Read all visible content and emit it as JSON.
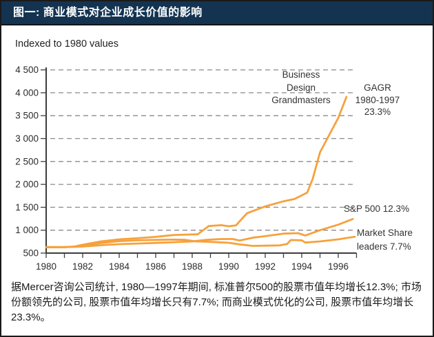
{
  "header": {
    "title": "图一: 商业模式对企业成长价值的影响",
    "bg_color": "#133351",
    "text_color": "#ffffff"
  },
  "chart": {
    "subtitle": "Indexed to 1980 values",
    "annotations": {
      "business_design": {
        "lines": [
          "Business",
          "Design",
          "Grandmasters"
        ]
      },
      "gagr": {
        "lines": [
          "GAGR",
          "1980-1997",
          "23.3%"
        ]
      },
      "sp500": {
        "text": "S&P 500 12.3%"
      },
      "market_share": {
        "lines": [
          "Market Share",
          "leaders 7.7%"
        ]
      }
    }
  },
  "chart_data": {
    "type": "line",
    "subtitle": "Indexed to 1980 values",
    "x_range": [
      1980,
      1997
    ],
    "ylim": [
      500,
      4500
    ],
    "grid": "dashed-horizontal",
    "line_color": "#F6A13B",
    "axis_color": "#3c3c3c",
    "grid_color": "#8a8a8a",
    "yticks": [
      {
        "v": 4500,
        "label": "4 500"
      },
      {
        "v": 4000,
        "label": "4 000"
      },
      {
        "v": 3500,
        "label": "3 500"
      },
      {
        "v": 3000,
        "label": "3 000"
      },
      {
        "v": 2500,
        "label": "2 500"
      },
      {
        "v": 2000,
        "label": "2 000"
      },
      {
        "v": 1500,
        "label": "1 500"
      },
      {
        "v": 1000,
        "label": "1 000"
      },
      {
        "v": 500,
        "label": "500"
      }
    ],
    "xticks": [
      1980,
      1981,
      1982,
      1983,
      1984,
      1985,
      1986,
      1987,
      1988,
      1989,
      1990,
      1991,
      1992,
      1993,
      1994,
      1995,
      1996,
      1997
    ],
    "xtick_labels": [
      "1980",
      "1982",
      "1984",
      "1986",
      "1988",
      "1990",
      "1992",
      "1994",
      "1996"
    ],
    "series": [
      {
        "key": "business-design-grandmasters",
        "name": "Business Design Grandmasters",
        "cagr_1980_1997": "23.3%",
        "points": [
          [
            1980,
            630
          ],
          [
            1981,
            632
          ],
          [
            1981.5,
            640
          ],
          [
            1982,
            682
          ],
          [
            1983,
            755
          ],
          [
            1984,
            800
          ],
          [
            1985,
            825
          ],
          [
            1986,
            855
          ],
          [
            1987,
            895
          ],
          [
            1988.3,
            910
          ],
          [
            1988.9,
            1090
          ],
          [
            1989.6,
            1110
          ],
          [
            1990,
            1085
          ],
          [
            1990.4,
            1105
          ],
          [
            1991,
            1370
          ],
          [
            1992,
            1520
          ],
          [
            1993,
            1630
          ],
          [
            1993.6,
            1680
          ],
          [
            1994.3,
            1820
          ],
          [
            1994.6,
            2120
          ],
          [
            1995,
            2700
          ],
          [
            1996,
            3450
          ],
          [
            1996.45,
            3910
          ]
        ]
      },
      {
        "key": "sp-500",
        "name": "S&P 500",
        "cagr_1980_1997": "12.3%",
        "points": [
          [
            1980,
            630
          ],
          [
            1981,
            630
          ],
          [
            1982,
            642
          ],
          [
            1983,
            672
          ],
          [
            1984,
            695
          ],
          [
            1985,
            708
          ],
          [
            1986,
            722
          ],
          [
            1987,
            738
          ],
          [
            1988,
            755
          ],
          [
            1988.8,
            790
          ],
          [
            1989.5,
            805
          ],
          [
            1990.2,
            810
          ],
          [
            1990.6,
            775
          ],
          [
            1991.3,
            835
          ],
          [
            1992,
            870
          ],
          [
            1993,
            925
          ],
          [
            1993.8,
            935
          ],
          [
            1994.2,
            885
          ],
          [
            1995,
            1000
          ],
          [
            1996,
            1120
          ],
          [
            1996.8,
            1245
          ]
        ]
      },
      {
        "key": "market-share-leaders",
        "name": "Market Share leaders",
        "cagr_1980_1997": "7.7%",
        "points": [
          [
            1980,
            630
          ],
          [
            1981,
            628
          ],
          [
            1982,
            655
          ],
          [
            1983,
            720
          ],
          [
            1984,
            762
          ],
          [
            1985,
            780
          ],
          [
            1986,
            788
          ],
          [
            1987,
            795
          ],
          [
            1987.6,
            790
          ],
          [
            1988.2,
            755
          ],
          [
            1989,
            745
          ],
          [
            1990,
            725
          ],
          [
            1990.7,
            685
          ],
          [
            1991.3,
            658
          ],
          [
            1992,
            662
          ],
          [
            1992.8,
            668
          ],
          [
            1993.2,
            700
          ],
          [
            1993.4,
            785
          ],
          [
            1994,
            780
          ],
          [
            1994.2,
            730
          ],
          [
            1995,
            755
          ],
          [
            1996,
            800
          ],
          [
            1996.9,
            858
          ]
        ]
      }
    ]
  },
  "caption": {
    "text": "据Mercer咨询公司统计, 1980—1997年期间, 标准普尔500的股票市值年均增长12.3%; 市场份额领先的公司, 股票市值年均增长只有7.7%; 而商业模式优化的公司, 股票市值年均增长23.3%。"
  }
}
